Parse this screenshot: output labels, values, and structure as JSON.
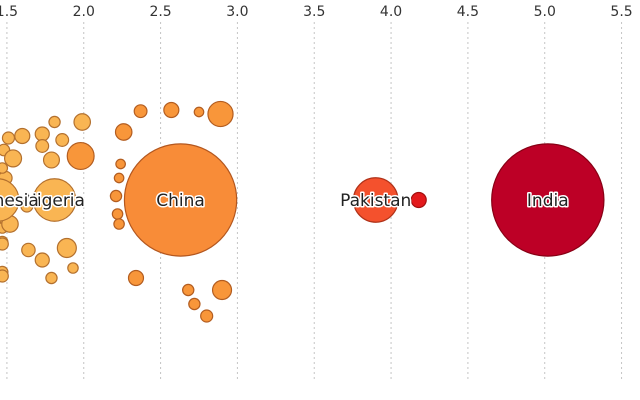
{
  "chart_data": {
    "type": "scatter",
    "title": "",
    "xlabel": "",
    "ylabel": "",
    "x_ticks": [
      "1.5",
      "2.0",
      "2.5",
      "3.0",
      "3.5",
      "4.0",
      "4.5",
      "5.0",
      "5.5"
    ],
    "x_tick_values": [
      1.5,
      2.0,
      2.5,
      3.0,
      3.5,
      4.0,
      4.5,
      5.0,
      5.5
    ],
    "xlim": [
      1.455,
      5.62
    ],
    "grid": "vertical dotted lines",
    "legend": "none",
    "color_scale": [
      "#f9b553",
      "#f8963a",
      "#f4512d",
      "#e31a1c",
      "#bd0026"
    ],
    "labeled_points": [
      {
        "label": "China",
        "x": 2.63,
        "size": 1400,
        "color": "#f88c38"
      },
      {
        "label": "Nigeria",
        "x": 1.81,
        "size": 200,
        "color": "#f9b553"
      },
      {
        "label": "Pakistan",
        "x": 3.9,
        "size": 220,
        "color": "#f4512d"
      },
      {
        "label": "India",
        "x": 5.02,
        "size": 1400,
        "color": "#bd0026"
      },
      {
        "label": "Indonesia",
        "x": 1.44,
        "size": 200,
        "color": "#f9b553"
      }
    ],
    "points": [
      {
        "x": 1.48,
        "y": 1.25,
        "size": 15,
        "color": "#f9b553"
      },
      {
        "x": 1.51,
        "y": 1.55,
        "size": 16,
        "color": "#f9b553"
      },
      {
        "x": 1.49,
        "y": 0.55,
        "size": 20,
        "color": "#f9b553"
      },
      {
        "x": 1.51,
        "y": 0.25,
        "size": 15,
        "color": "#f9b553"
      },
      {
        "x": 1.47,
        "y": 0.8,
        "size": 12,
        "color": "#f9b553"
      },
      {
        "x": 1.49,
        "y": -0.45,
        "size": 20,
        "color": "#f9b553"
      },
      {
        "x": 1.47,
        "y": -0.7,
        "size": 12,
        "color": "#f9b553"
      },
      {
        "x": 1.47,
        "y": -1.05,
        "size": 14,
        "color": "#f9b553"
      },
      {
        "x": 1.47,
        "y": -1.8,
        "size": 14,
        "color": "#f9b553"
      },
      {
        "x": 1.47,
        "y": -1.9,
        "size": 16,
        "color": "#f9b553"
      },
      {
        "x": 1.47,
        "y": -1.1,
        "size": 16,
        "color": "#f9b553"
      },
      {
        "x": 1.6,
        "y": 1.6,
        "size": 25,
        "color": "#f9b553"
      },
      {
        "x": 1.73,
        "y": 1.65,
        "size": 22,
        "color": "#f9b553"
      },
      {
        "x": 1.73,
        "y": 1.35,
        "size": 18,
        "color": "#f9b553"
      },
      {
        "x": 1.54,
        "y": 1.04,
        "size": 32,
        "color": "#f9b553"
      },
      {
        "x": 1.79,
        "y": 1.0,
        "size": 28,
        "color": "#f9b553"
      },
      {
        "x": 1.86,
        "y": 1.5,
        "size": 18,
        "color": "#f9b553"
      },
      {
        "x": 1.99,
        "y": 1.95,
        "size": 30,
        "color": "#f9b553"
      },
      {
        "x": 1.81,
        "y": 1.95,
        "size": 14,
        "color": "#f9b553"
      },
      {
        "x": 1.98,
        "y": 1.1,
        "size": 80,
        "color": "#f8963a"
      },
      {
        "x": 1.52,
        "y": -0.6,
        "size": 30,
        "color": "#f9b553"
      },
      {
        "x": 1.64,
        "y": -1.25,
        "size": 20,
        "color": "#f9b553"
      },
      {
        "x": 1.73,
        "y": -1.5,
        "size": 22,
        "color": "#f9b553"
      },
      {
        "x": 1.63,
        "y": -0.15,
        "size": 16,
        "color": "#f9b553"
      },
      {
        "x": 1.89,
        "y": -1.2,
        "size": 40,
        "color": "#f9b553"
      },
      {
        "x": 1.93,
        "y": -1.7,
        "size": 12,
        "color": "#f9b553"
      },
      {
        "x": 1.79,
        "y": -1.95,
        "size": 14,
        "color": "#f9b553"
      },
      {
        "x": 2.26,
        "y": 1.7,
        "size": 30,
        "color": "#f8963a"
      },
      {
        "x": 2.37,
        "y": 2.22,
        "size": 18,
        "color": "#f8963a"
      },
      {
        "x": 2.57,
        "y": 2.25,
        "size": 25,
        "color": "#f8963a"
      },
      {
        "x": 2.75,
        "y": 2.2,
        "size": 10,
        "color": "#f8963a"
      },
      {
        "x": 2.89,
        "y": 2.15,
        "size": 70,
        "color": "#f8963a"
      },
      {
        "x": 2.24,
        "y": 0.9,
        "size": 10,
        "color": "#f8963a"
      },
      {
        "x": 2.23,
        "y": 0.55,
        "size": 10,
        "color": "#f8963a"
      },
      {
        "x": 2.21,
        "y": 0.1,
        "size": 14,
        "color": "#f8963a"
      },
      {
        "x": 2.22,
        "y": -0.35,
        "size": 12,
        "color": "#f8963a"
      },
      {
        "x": 2.23,
        "y": -0.6,
        "size": 12,
        "color": "#f8963a"
      },
      {
        "x": 2.34,
        "y": -1.95,
        "size": 25,
        "color": "#f8963a"
      },
      {
        "x": 2.68,
        "y": -2.25,
        "size": 14,
        "color": "#f8963a"
      },
      {
        "x": 2.72,
        "y": -2.6,
        "size": 14,
        "color": "#f8963a"
      },
      {
        "x": 2.8,
        "y": -2.9,
        "size": 16,
        "color": "#f8963a"
      },
      {
        "x": 2.9,
        "y": -2.25,
        "size": 40,
        "color": "#f8963a"
      },
      {
        "x": 4.18,
        "y": 0.0,
        "size": 25,
        "color": "#e31a1c"
      }
    ]
  }
}
